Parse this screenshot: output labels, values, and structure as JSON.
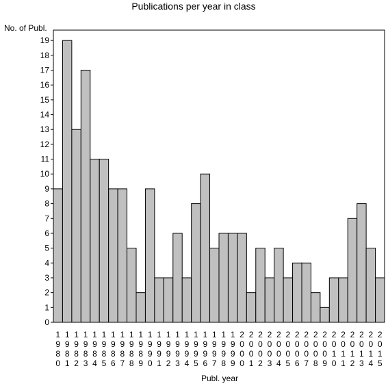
{
  "chart_data": {
    "type": "bar",
    "title": "Publications per year in class",
    "ylabel": "No. of Publ.",
    "xlabel": "Publ. year",
    "categories": [
      "1980",
      "1981",
      "1982",
      "1983",
      "1984",
      "1985",
      "1986",
      "1987",
      "1988",
      "1989",
      "1990",
      "1991",
      "1992",
      "1993",
      "1994",
      "1995",
      "1996",
      "1997",
      "1998",
      "1999",
      "2000",
      "2001",
      "2002",
      "2003",
      "2004",
      "2005",
      "2006",
      "2007",
      "2008",
      "2009",
      "2010",
      "2011",
      "2012",
      "2013",
      "2014",
      "2015"
    ],
    "values": [
      9,
      19,
      13,
      17,
      11,
      11,
      9,
      9,
      5,
      2,
      9,
      3,
      3,
      6,
      3,
      8,
      10,
      5,
      6,
      6,
      6,
      2,
      5,
      3,
      5,
      3,
      4,
      4,
      2,
      1,
      3,
      3,
      7,
      8,
      5,
      3
    ],
    "yticks": [
      0,
      1,
      2,
      3,
      4,
      5,
      6,
      7,
      8,
      9,
      10,
      11,
      12,
      13,
      14,
      15,
      16,
      17,
      18,
      19
    ],
    "ylim": [
      0,
      19.7
    ],
    "bar_color": "#c0c0c0",
    "edge_color": "#000000",
    "grid": false
  }
}
